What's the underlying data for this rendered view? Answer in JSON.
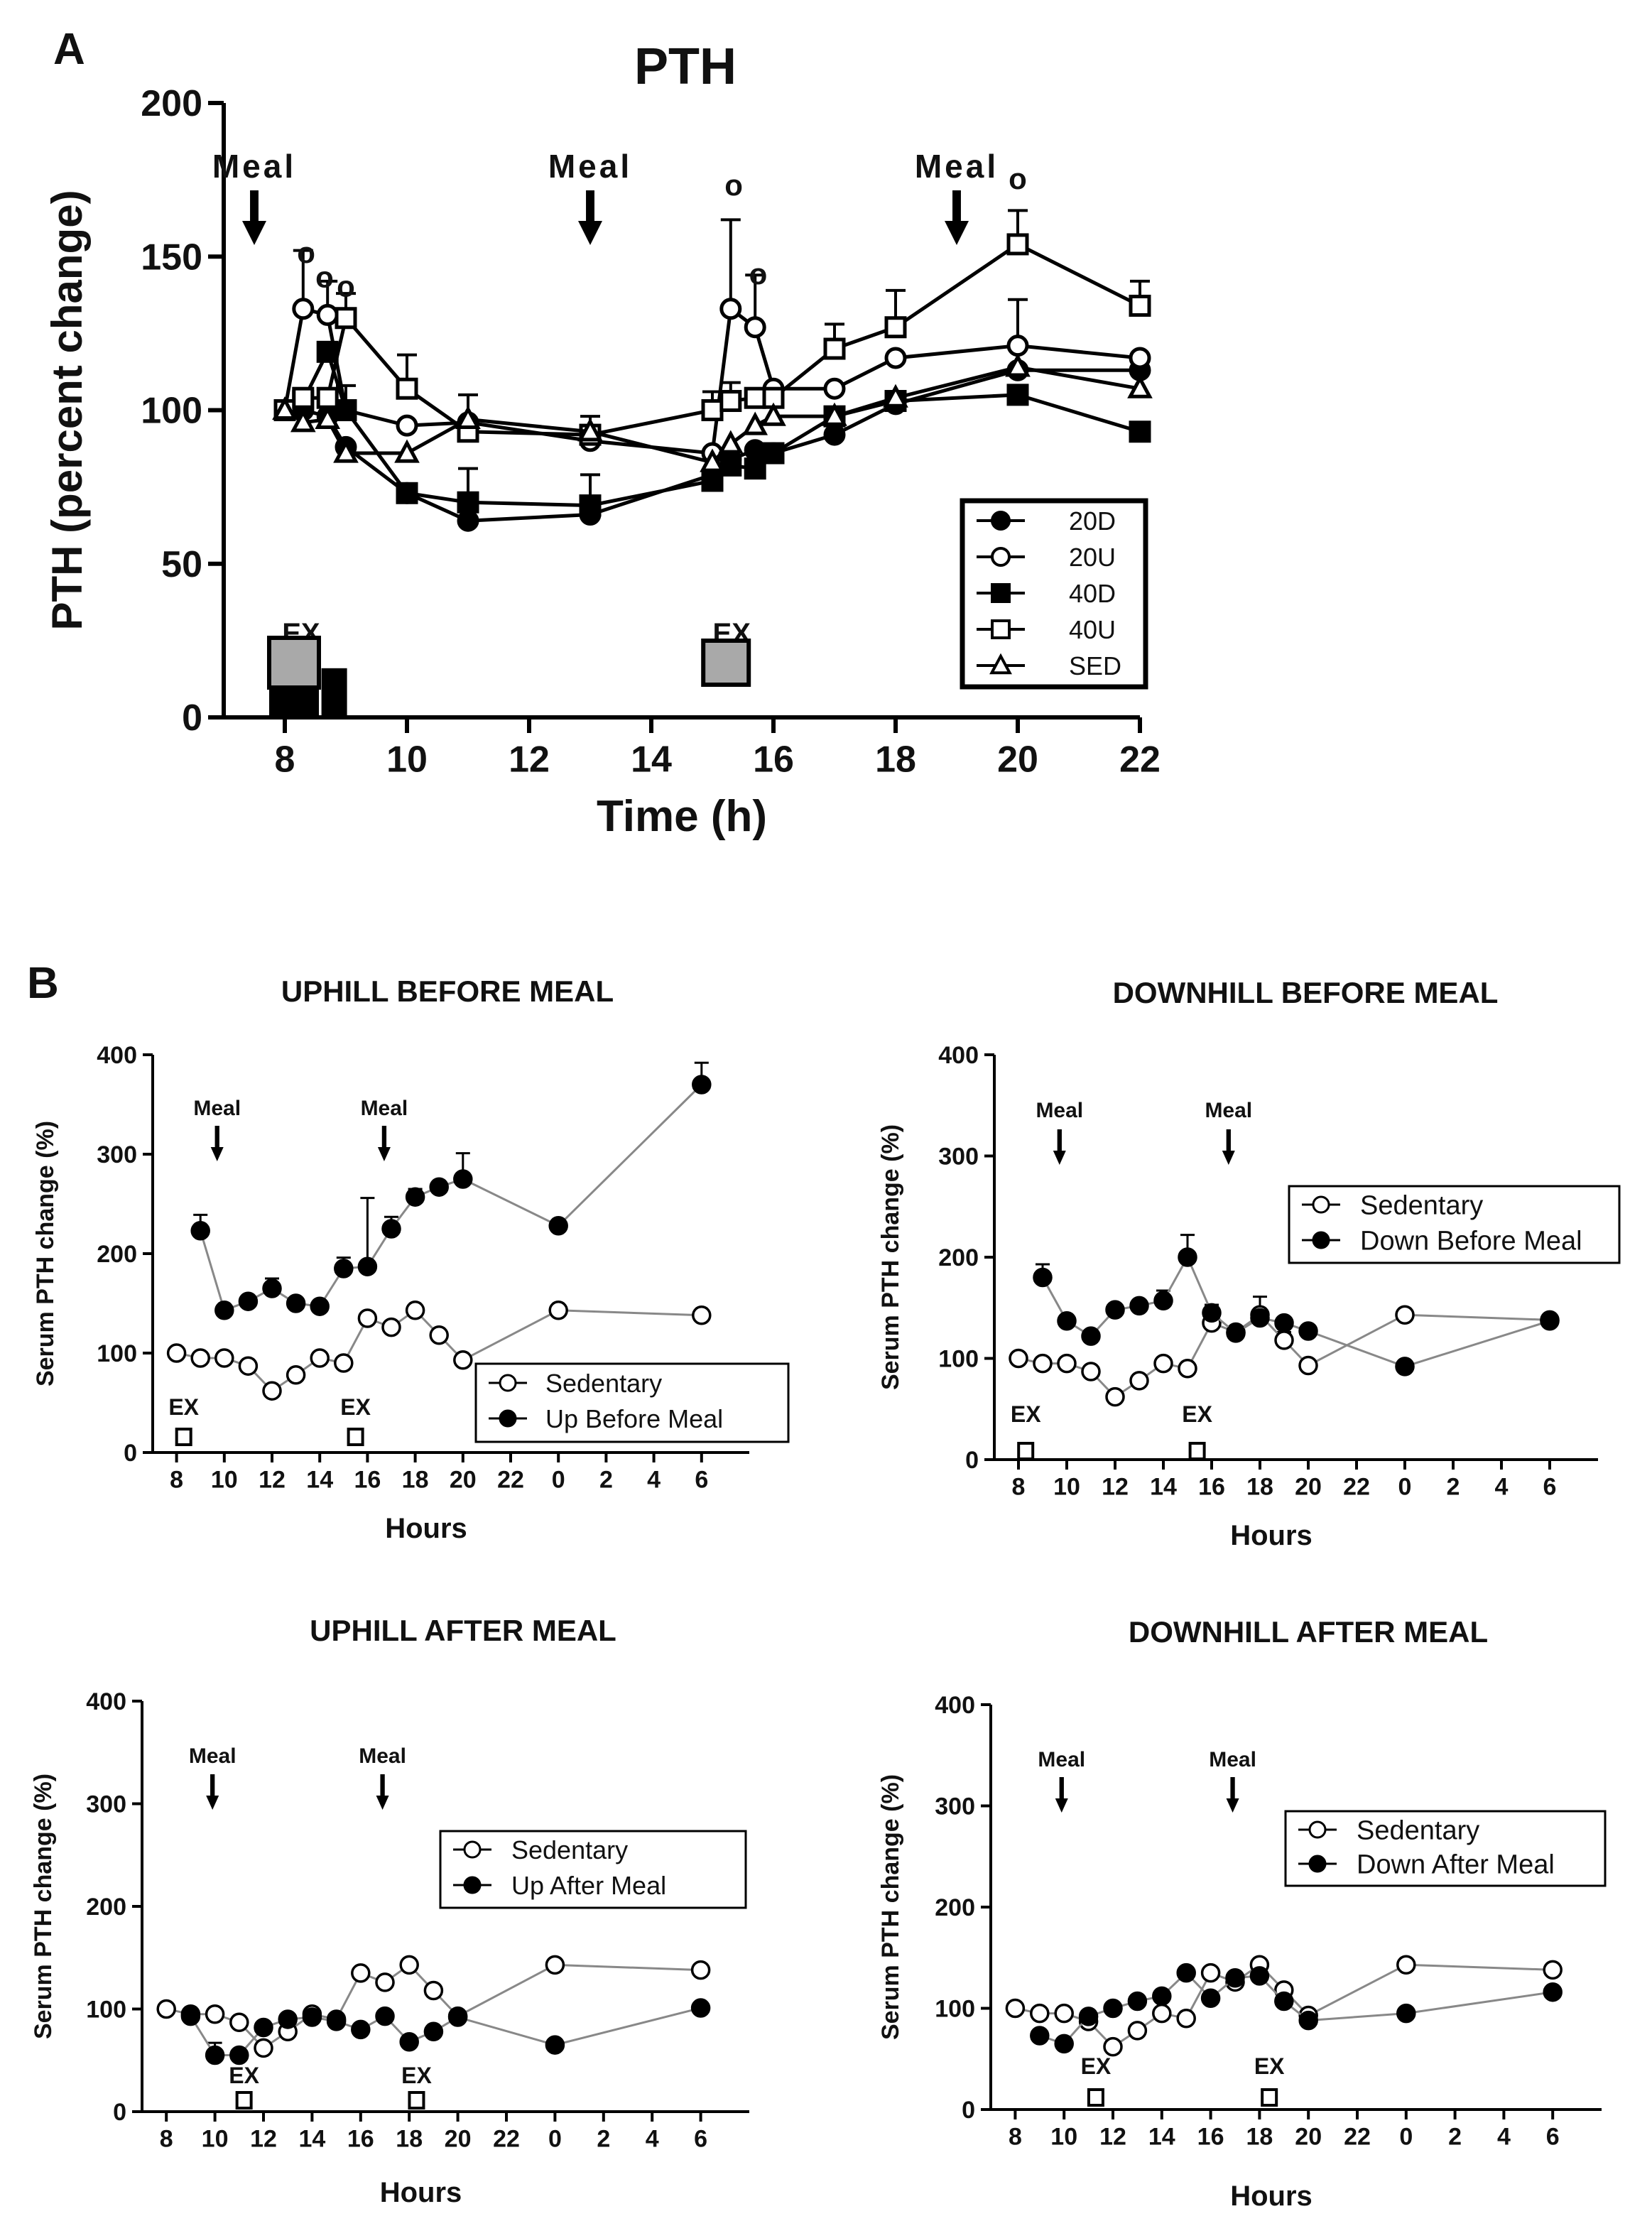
{
  "figure": {
    "panel_a_letter": "A",
    "panel_b_letter": "B"
  },
  "chart_data": [
    {
      "id": "A",
      "type": "line",
      "title": "PTH",
      "xlabel": "Time (h)",
      "ylabel": "PTH (percent change)",
      "xlim": [
        7,
        22
      ],
      "ylim": [
        0,
        200
      ],
      "xticks": [
        "8",
        "10",
        "12",
        "14",
        "16",
        "18",
        "20",
        "22"
      ],
      "xtick_values": [
        8,
        10,
        12,
        14,
        16,
        18,
        20,
        22
      ],
      "yticks": [
        "0",
        "50",
        "100",
        "150",
        "200"
      ],
      "ytick_values": [
        0,
        50,
        100,
        150,
        200
      ],
      "meal_label": "Meal",
      "meals_at": [
        7.5,
        13,
        19
      ],
      "ex_label": "EX",
      "exercise": [
        {
          "x": 8.15,
          "label": "EX"
        },
        {
          "x": 15.2,
          "label": "EX"
        }
      ],
      "annotation_symbol": "o",
      "annotations": [
        {
          "x": 8.35,
          "y": 148
        },
        {
          "x": 8.65,
          "y": 140
        },
        {
          "x": 9.0,
          "y": 137
        },
        {
          "x": 15.35,
          "y": 170
        },
        {
          "x": 15.75,
          "y": 141
        },
        {
          "x": 20.0,
          "y": 172
        }
      ],
      "series": [
        {
          "name": "20D",
          "marker": "circle",
          "filled": true,
          "x": [
            8.0,
            8.3,
            8.7,
            9.0,
            10.0,
            11.0,
            13.0,
            15.0,
            15.3,
            15.7,
            16.0,
            17.0,
            18.0,
            20.0,
            22.0
          ],
          "y": [
            100,
            100,
            98,
            88,
            73,
            64,
            66,
            79,
            84,
            87,
            86,
            92,
            102,
            113,
            113
          ],
          "err": [
            0,
            0,
            0,
            0,
            0,
            0,
            0,
            0,
            0,
            0,
            0,
            0,
            0,
            0,
            0
          ]
        },
        {
          "name": "20U",
          "marker": "circle",
          "filled": false,
          "x": [
            8.0,
            8.3,
            8.7,
            9.0,
            10.0,
            11.0,
            13.0,
            15.0,
            15.3,
            15.7,
            16.0,
            17.0,
            18.0,
            20.0,
            22.0
          ],
          "y": [
            100,
            133,
            131,
            100,
            95,
            96,
            90,
            86,
            133,
            127,
            107,
            107,
            117,
            121,
            117
          ],
          "err": [
            0,
            19,
            11,
            8,
            0,
            9,
            0,
            0,
            29,
            17,
            0,
            0,
            0,
            15,
            0
          ]
        },
        {
          "name": "40D",
          "marker": "square",
          "filled": true,
          "x": [
            8.0,
            8.3,
            8.7,
            9.0,
            10.0,
            11.0,
            13.0,
            15.0,
            15.3,
            15.7,
            16.0,
            17.0,
            18.0,
            20.0,
            22.0
          ],
          "y": [
            100,
            103,
            119,
            100,
            73,
            70,
            69,
            77,
            82,
            81,
            86,
            98,
            103,
            105,
            93
          ],
          "err": [
            0,
            0,
            0,
            0,
            0,
            11,
            10,
            0,
            0,
            0,
            0,
            0,
            0,
            0,
            0
          ]
        },
        {
          "name": "40U",
          "marker": "square",
          "filled": false,
          "x": [
            8.0,
            8.3,
            8.7,
            9.0,
            10.0,
            11.0,
            13.0,
            15.0,
            15.3,
            15.7,
            16.0,
            17.0,
            18.0,
            20.0,
            22.0
          ],
          "y": [
            100,
            104,
            104,
            130,
            107,
            93,
            92,
            100,
            103,
            104,
            104,
            120,
            127,
            154,
            134
          ],
          "err": [
            0,
            0,
            0,
            8,
            11,
            0,
            6,
            6,
            6,
            0,
            0,
            8,
            12,
            11,
            8
          ]
        },
        {
          "name": "SED",
          "marker": "triangle",
          "filled": false,
          "x": [
            8.0,
            8.3,
            8.7,
            9.0,
            10.0,
            11.0,
            13.0,
            15.0,
            15.3,
            15.7,
            16.0,
            17.0,
            18.0,
            20.0,
            22.0
          ],
          "y": [
            100,
            96,
            97,
            86,
            86,
            97,
            93,
            83,
            89,
            95,
            98,
            98,
            104,
            114,
            107
          ],
          "err": [
            0,
            0,
            0,
            0,
            0,
            0,
            0,
            0,
            0,
            0,
            0,
            0,
            0,
            0,
            0
          ]
        }
      ]
    },
    {
      "id": "B1",
      "type": "line",
      "title": "UPHILL BEFORE MEAL",
      "xlabel": "Hours",
      "ylabel": "Serum PTH change (%)",
      "xlim": [
        7,
        32
      ],
      "ylim": [
        0,
        400
      ],
      "xticks": [
        "8",
        "10",
        "12",
        "14",
        "16",
        "18",
        "20",
        "22",
        "0",
        "2",
        "4",
        "6"
      ],
      "xtick_values": [
        8,
        10,
        12,
        14,
        16,
        18,
        20,
        22,
        24,
        26,
        28,
        30
      ],
      "yticks": [
        "0",
        "100",
        "200",
        "300",
        "400"
      ],
      "ytick_values": [
        0,
        100,
        200,
        300,
        400
      ],
      "meal_label": "Meal",
      "meals_at": [
        9.7,
        16.7
      ],
      "ex_label": "EX",
      "exercise": [
        {
          "x": 8.3
        },
        {
          "x": 15.5
        }
      ],
      "legend": [
        "Sedentary",
        "Up Before Meal"
      ],
      "series": [
        {
          "name": "Sedentary",
          "filled": false,
          "x": [
            8,
            9,
            10,
            11,
            12,
            13,
            14,
            15,
            16,
            17,
            18,
            19,
            20,
            24,
            30
          ],
          "y": [
            100,
            95,
            95,
            87,
            62,
            78,
            95,
            90,
            135,
            126,
            143,
            118,
            93,
            143,
            138
          ],
          "err": [
            0,
            0,
            0,
            0,
            0,
            0,
            0,
            0,
            0,
            0,
            0,
            0,
            0,
            0,
            0
          ]
        },
        {
          "name": "Up Before Meal",
          "filled": true,
          "x": [
            9,
            10,
            11,
            12,
            13,
            14,
            15,
            16,
            17,
            18,
            19,
            20,
            24,
            30
          ],
          "y": [
            223,
            143,
            152,
            165,
            150,
            147,
            185,
            187,
            225,
            257,
            267,
            275,
            228,
            370
          ],
          "err": [
            16,
            0,
            0,
            10,
            0,
            0,
            11,
            69,
            12,
            8,
            0,
            26,
            0,
            22
          ]
        }
      ]
    },
    {
      "id": "B2",
      "type": "line",
      "title": "DOWNHILL BEFORE MEAL",
      "xlabel": "Hours",
      "ylabel": "Serum PTH change (%)",
      "xlim": [
        7,
        32
      ],
      "ylim": [
        0,
        400
      ],
      "xticks": [
        "8",
        "10",
        "12",
        "14",
        "16",
        "18",
        "20",
        "22",
        "0",
        "2",
        "4",
        "6"
      ],
      "xtick_values": [
        8,
        10,
        12,
        14,
        16,
        18,
        20,
        22,
        24,
        26,
        28,
        30
      ],
      "yticks": [
        "0",
        "100",
        "200",
        "300",
        "400"
      ],
      "ytick_values": [
        0,
        100,
        200,
        300,
        400
      ],
      "meal_label": "Meal",
      "meals_at": [
        9.7,
        16.7
      ],
      "ex_label": "EX",
      "exercise": [
        {
          "x": 8.3
        },
        {
          "x": 15.4
        }
      ],
      "legend": [
        "Sedentary",
        "Down Before Meal"
      ],
      "series": [
        {
          "name": "Sedentary",
          "filled": false,
          "x": [
            8,
            9,
            10,
            11,
            12,
            13,
            14,
            15,
            16,
            17,
            18,
            19,
            20,
            24,
            30
          ],
          "y": [
            100,
            95,
            95,
            87,
            62,
            78,
            95,
            90,
            135,
            126,
            143,
            118,
            93,
            143,
            138
          ],
          "err": [
            0,
            0,
            0,
            0,
            0,
            0,
            0,
            0,
            0,
            0,
            18,
            8,
            0,
            0,
            0
          ]
        },
        {
          "name": "Down Before Meal",
          "filled": true,
          "x": [
            9,
            10,
            11,
            12,
            13,
            14,
            15,
            16,
            17,
            18,
            19,
            20,
            24,
            30
          ],
          "y": [
            180,
            137,
            122,
            148,
            152,
            157,
            200,
            145,
            125,
            140,
            135,
            127,
            92,
            137
          ],
          "err": [
            13,
            0,
            0,
            0,
            0,
            10,
            22,
            8,
            0,
            0,
            0,
            0,
            0,
            0
          ]
        }
      ]
    },
    {
      "id": "B3",
      "type": "line",
      "title": "UPHILL AFTER MEAL",
      "xlabel": "Hours",
      "ylabel": "Serum PTH change (%)",
      "xlim": [
        7,
        32
      ],
      "ylim": [
        0,
        400
      ],
      "xticks": [
        "8",
        "10",
        "12",
        "14",
        "16",
        "18",
        "20",
        "22",
        "0",
        "2",
        "4",
        "6"
      ],
      "xtick_values": [
        8,
        10,
        12,
        14,
        16,
        18,
        20,
        22,
        24,
        26,
        28,
        30
      ],
      "yticks": [
        "0",
        "100",
        "200",
        "300",
        "400"
      ],
      "ytick_values": [
        0,
        100,
        200,
        300,
        400
      ],
      "meal_label": "Meal",
      "meals_at": [
        9.9,
        16.9
      ],
      "ex_label": "EX",
      "exercise": [
        {
          "x": 11.2
        },
        {
          "x": 18.3
        }
      ],
      "legend": [
        "Sedentary",
        "Up After Meal"
      ],
      "series": [
        {
          "name": "Sedentary",
          "filled": false,
          "x": [
            8,
            9,
            10,
            11,
            12,
            13,
            14,
            15,
            16,
            17,
            18,
            19,
            20,
            24,
            30
          ],
          "y": [
            100,
            95,
            95,
            87,
            62,
            78,
            95,
            90,
            135,
            126,
            143,
            118,
            93,
            143,
            138
          ],
          "err": [
            0,
            0,
            0,
            0,
            0,
            0,
            0,
            0,
            0,
            0,
            0,
            0,
            0,
            0,
            0
          ]
        },
        {
          "name": "Up After Meal",
          "filled": true,
          "x": [
            9,
            10,
            11,
            12,
            13,
            14,
            15,
            16,
            17,
            18,
            19,
            20,
            24,
            30
          ],
          "y": [
            93,
            55,
            55,
            82,
            90,
            92,
            88,
            80,
            93,
            68,
            78,
            92,
            65,
            101
          ],
          "err": [
            0,
            12,
            0,
            0,
            0,
            0,
            0,
            0,
            0,
            0,
            0,
            0,
            0,
            0
          ]
        }
      ]
    },
    {
      "id": "B4",
      "type": "line",
      "title": "DOWNHILL AFTER MEAL",
      "xlabel": "Hours",
      "ylabel": "Serum PTH change (%)",
      "xlim": [
        7,
        32
      ],
      "ylim": [
        0,
        400
      ],
      "xticks": [
        "8",
        "10",
        "12",
        "14",
        "16",
        "18",
        "20",
        "22",
        "0",
        "2",
        "4",
        "6"
      ],
      "xtick_values": [
        8,
        10,
        12,
        14,
        16,
        18,
        20,
        22,
        24,
        26,
        28,
        30
      ],
      "yticks": [
        "0",
        "100",
        "200",
        "300",
        "400"
      ],
      "ytick_values": [
        0,
        100,
        200,
        300,
        400
      ],
      "meal_label": "Meal",
      "meals_at": [
        9.9,
        16.9
      ],
      "ex_label": "EX",
      "exercise": [
        {
          "x": 11.3
        },
        {
          "x": 18.4
        }
      ],
      "legend": [
        "Sedentary",
        "Down After Meal"
      ],
      "series": [
        {
          "name": "Sedentary",
          "filled": false,
          "x": [
            8,
            9,
            10,
            11,
            12,
            13,
            14,
            15,
            16,
            17,
            18,
            19,
            20,
            24,
            30
          ],
          "y": [
            100,
            95,
            95,
            87,
            62,
            78,
            95,
            90,
            135,
            126,
            143,
            118,
            93,
            143,
            138
          ],
          "err": [
            0,
            0,
            0,
            0,
            0,
            0,
            0,
            0,
            0,
            0,
            0,
            0,
            0,
            0,
            0
          ]
        },
        {
          "name": "Down After Meal",
          "filled": true,
          "x": [
            9,
            10,
            11,
            12,
            13,
            14,
            15,
            16,
            17,
            18,
            19,
            20,
            24,
            30
          ],
          "y": [
            73,
            65,
            92,
            100,
            107,
            112,
            135,
            110,
            130,
            132,
            107,
            88,
            95,
            116
          ],
          "err": [
            0,
            0,
            0,
            0,
            0,
            0,
            0,
            0,
            0,
            0,
            0,
            0,
            0,
            0
          ]
        }
      ]
    }
  ]
}
